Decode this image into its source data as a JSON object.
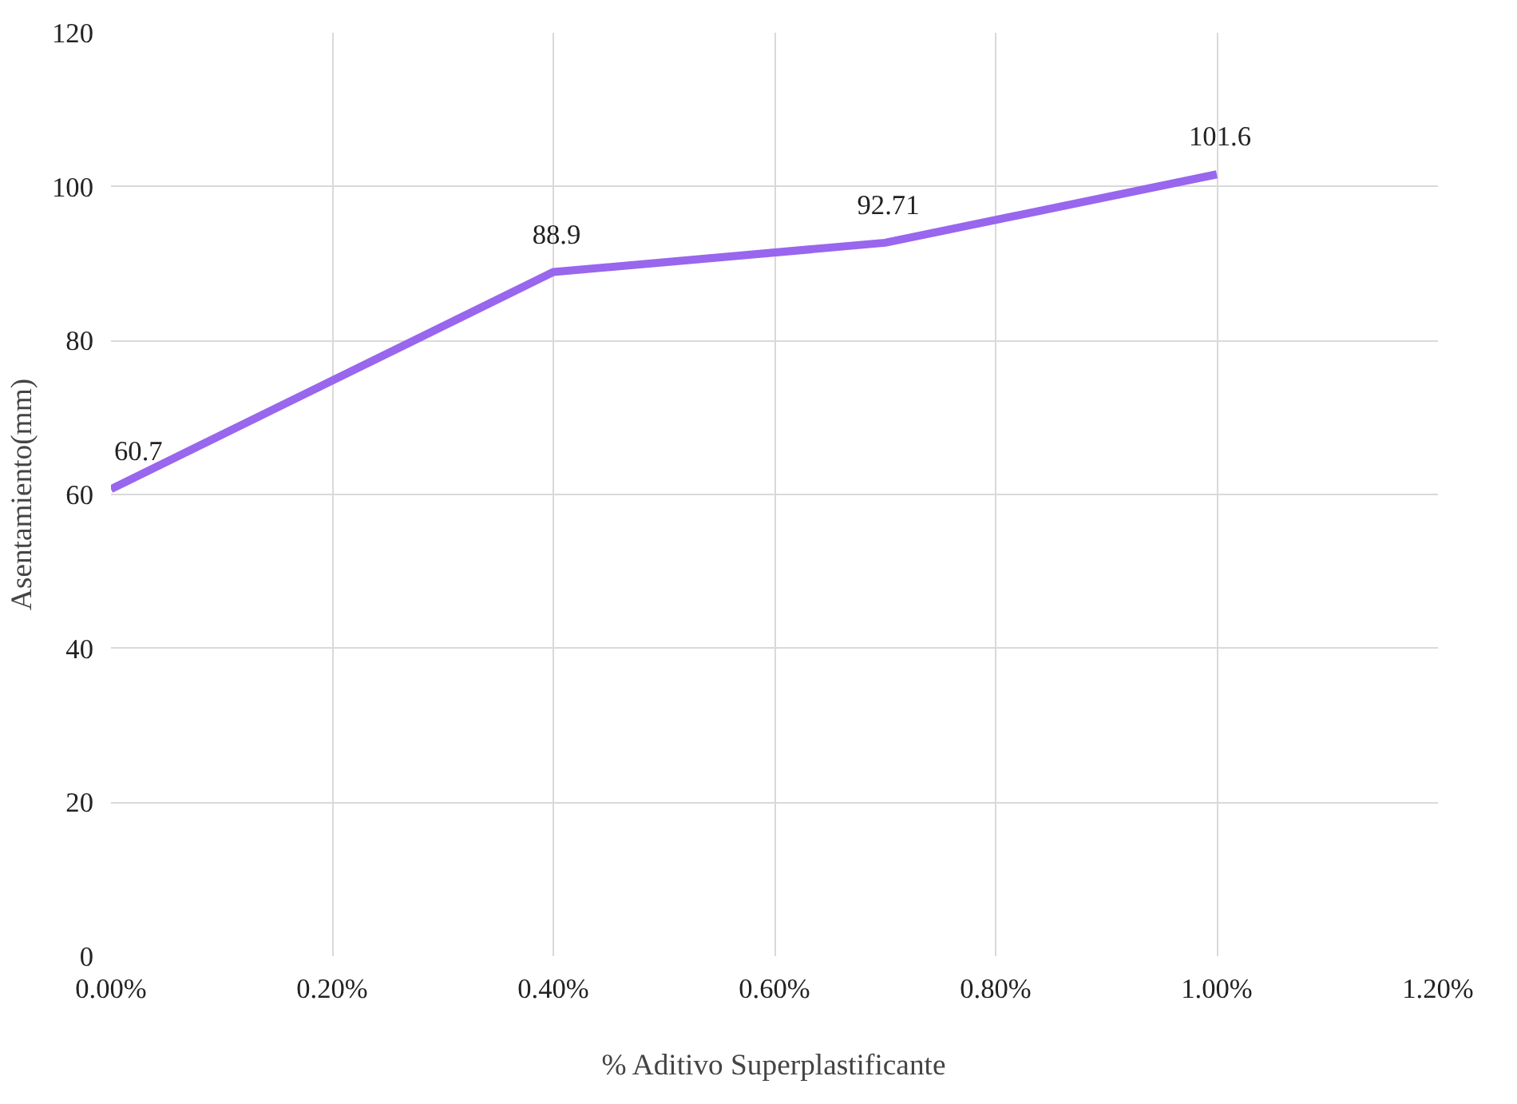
{
  "chart_data": {
    "type": "line",
    "xlabel": "% Aditivo Superplastificante",
    "ylabel": "Asentamiento(mm)",
    "x": [
      0,
      0.4,
      0.7,
      1.0
    ],
    "series": [
      {
        "color": "#9966ee",
        "values": [
          60.7,
          88.9,
          92.71,
          101.6
        ]
      }
    ],
    "data_labels": true,
    "grid": true,
    "marker": "none",
    "line_style": "solid",
    "xlim": [
      0,
      1.2
    ],
    "xticks": [
      {
        "value": 0,
        "label": "0.00%"
      },
      {
        "value": 0.2,
        "label": "0.20%"
      },
      {
        "value": 0.4,
        "label": "0.40%"
      },
      {
        "value": 0.6,
        "label": "0.60%"
      },
      {
        "value": 0.8,
        "label": "0.80%"
      },
      {
        "value": 1.0,
        "label": "1.00%"
      },
      {
        "value": 1.2,
        "label": "1.20%"
      }
    ],
    "ylim": [
      0,
      120
    ],
    "yticks": [
      0,
      20,
      40,
      60,
      80,
      100,
      120
    ]
  }
}
